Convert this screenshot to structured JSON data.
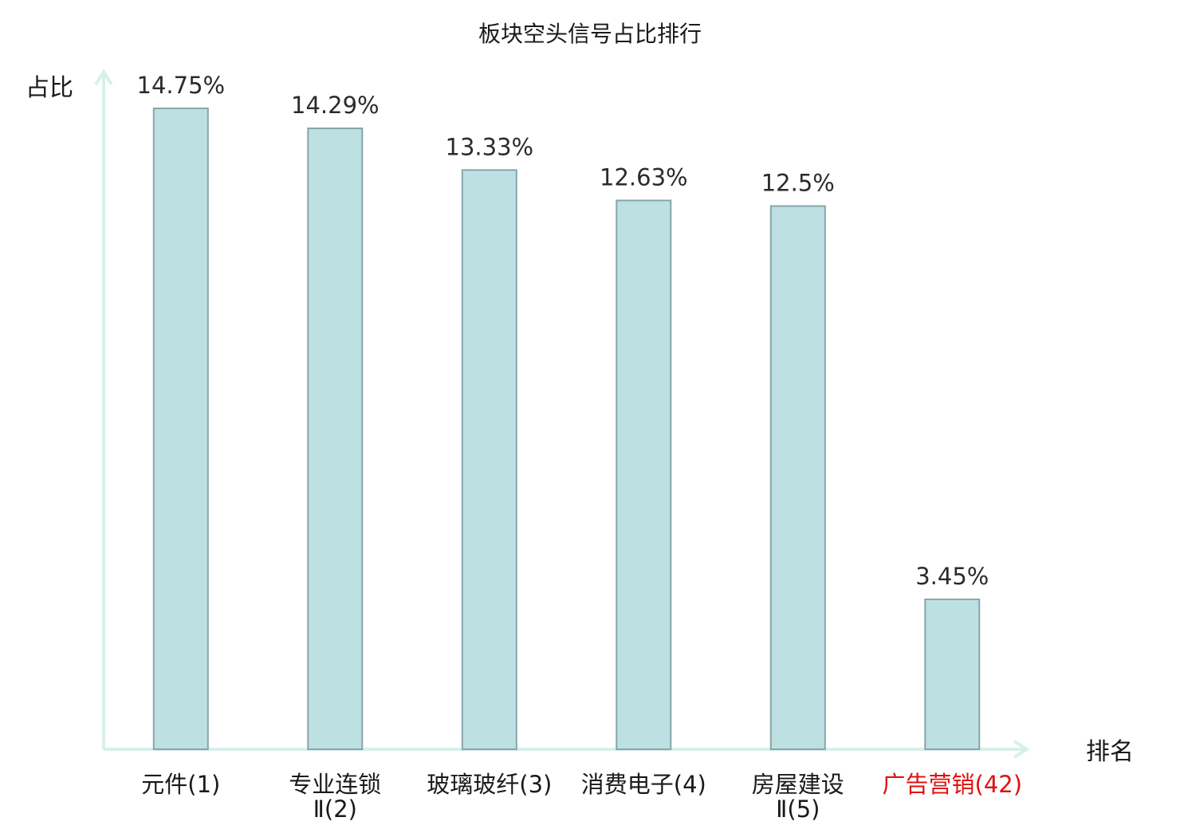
{
  "chart_data": {
    "type": "bar",
    "title": "板块空头信号占比排行",
    "xlabel": "排名",
    "ylabel": "占比",
    "ylim": [
      0,
      15.5
    ],
    "grid": false,
    "legend": "none",
    "categories": [
      {
        "name": "元件",
        "rank": "(1)"
      },
      {
        "name": "专业连锁Ⅱ",
        "rank": "(2)"
      },
      {
        "name": "玻璃玻纤",
        "rank": "(3)"
      },
      {
        "name": "消费电子",
        "rank": "(4)"
      },
      {
        "name": "房屋建设Ⅱ",
        "rank": "(5)"
      },
      {
        "name": "广告营销",
        "rank": "(42)",
        "highlight": true
      }
    ],
    "values": [
      14.75,
      14.29,
      13.33,
      12.63,
      12.5,
      3.45
    ],
    "value_labels": [
      "14.75%",
      "14.29%",
      "13.33%",
      "12.63%",
      "12.5%",
      "3.45%"
    ],
    "colors": {
      "bar_fill": "#bde0e3",
      "bar_stroke": "#87a6a8",
      "axis": "#d9efec",
      "highlight": "#e01010"
    }
  }
}
